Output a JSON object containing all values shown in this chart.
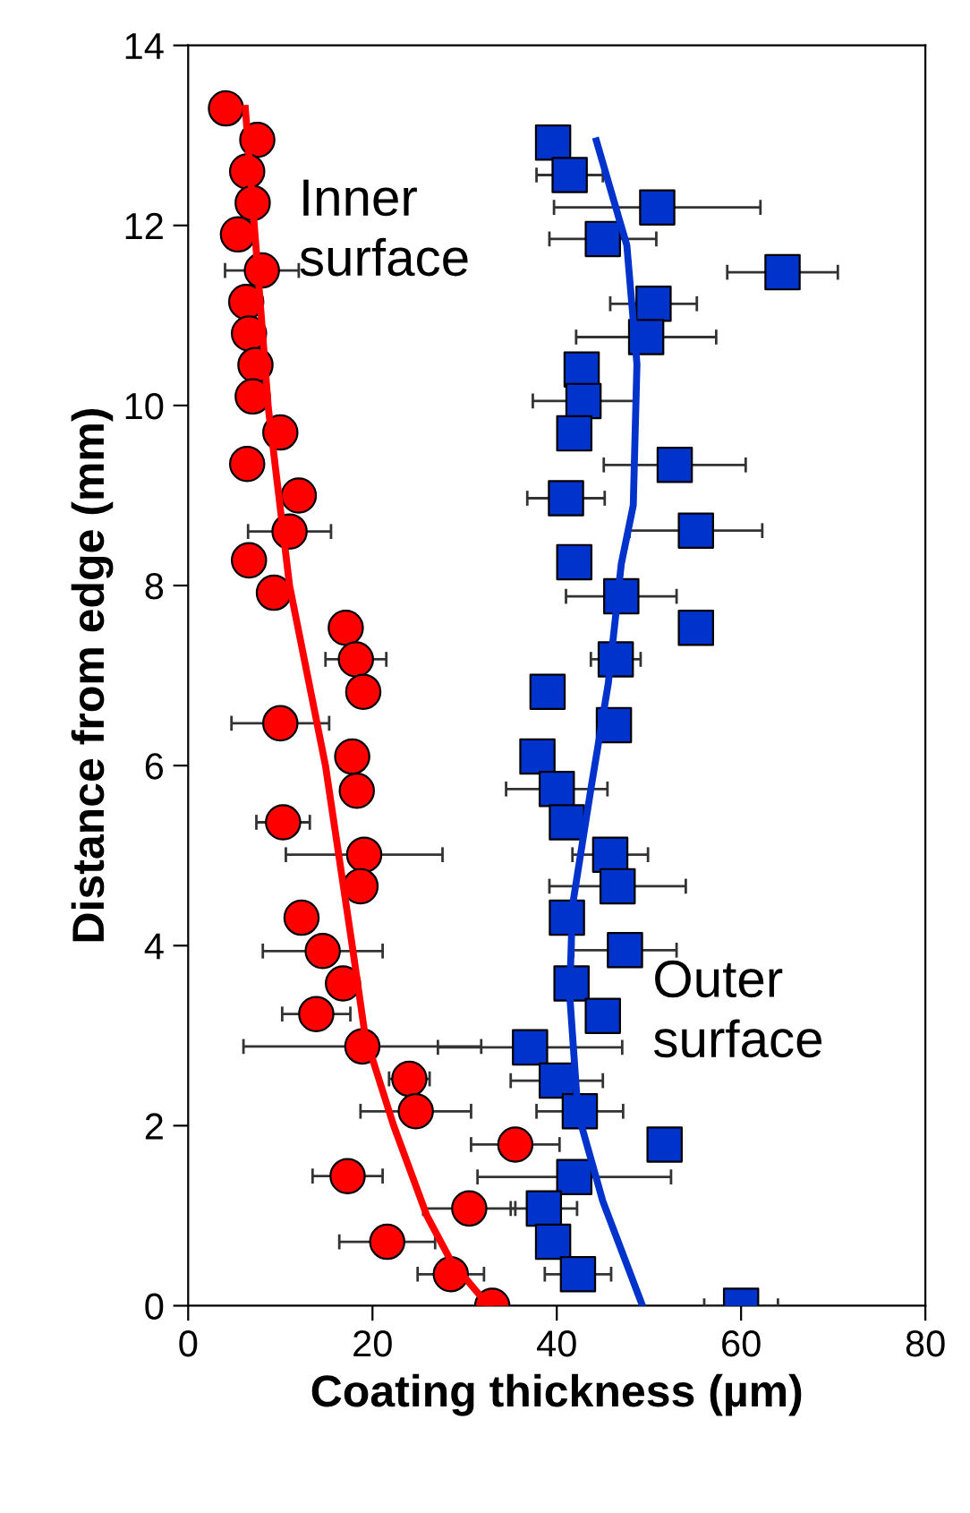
{
  "chart_data": {
    "type": "scatter",
    "xlabel": "Coating thickness (µm)",
    "ylabel": "Distance from edge (mm)",
    "xlim": [
      0,
      80
    ],
    "ylim": [
      0,
      14
    ],
    "xticks": [
      0,
      20,
      40,
      60,
      80
    ],
    "yticks": [
      0,
      2,
      4,
      6,
      8,
      10,
      12,
      14
    ],
    "grid": false,
    "legend": false,
    "series": [
      {
        "name": "Inner surface",
        "marker": "circle",
        "color": "#ff0000",
        "x": [
          4.1,
          7.5,
          6.4,
          7.0,
          5.4,
          8.0,
          6.3,
          6.6,
          7.3,
          7.0,
          10.0,
          6.4,
          12.0,
          11.0,
          6.6,
          9.3,
          17.1,
          18.2,
          19.0,
          10.0,
          17.8,
          18.3,
          10.3,
          19.1,
          18.7,
          12.3,
          14.6,
          16.8,
          13.9,
          18.9,
          24.0,
          24.7,
          35.5,
          17.3,
          30.5,
          21.6,
          28.5,
          33.0
        ],
        "values": [
          13.3,
          12.95,
          12.6,
          12.25,
          11.9,
          11.5,
          11.15,
          10.8,
          10.45,
          10.1,
          9.7,
          9.35,
          9.0,
          8.6,
          8.28,
          7.92,
          7.53,
          7.18,
          6.82,
          6.47,
          6.1,
          5.72,
          5.37,
          5.01,
          4.66,
          4.31,
          3.94,
          3.58,
          3.24,
          2.88,
          2.52,
          2.16,
          1.79,
          1.44,
          1.08,
          0.71,
          0.35,
          0.0
        ],
        "xerrors": [
          null,
          1.5,
          null,
          null,
          null,
          4,
          null,
          null,
          null,
          null,
          null,
          null,
          null,
          4.5,
          null,
          null,
          null,
          3.3,
          null,
          5.3,
          null,
          null,
          2.9,
          8.5,
          null,
          null,
          6.5,
          null,
          3.7,
          12.9,
          2.2,
          6,
          4.8,
          3.8,
          5,
          5.2,
          3.6,
          null
        ]
      },
      {
        "name": "Outer surface",
        "marker": "square",
        "color": "#0033cc",
        "x": [
          39.6,
          41.4,
          50.9,
          45.0,
          64.5,
          50.5,
          49.7,
          42.7,
          42.9,
          41.9,
          52.8,
          41.0,
          55.1,
          41.9,
          47.0,
          55.1,
          46.4,
          39.0,
          46.2,
          37.9,
          40.0,
          41.1,
          45.8,
          46.6,
          41.1,
          47.4,
          41.6,
          45.0,
          37.1,
          40.0,
          42.5,
          51.7,
          41.9,
          38.6,
          39.6,
          42.3,
          60.0
        ],
        "values": [
          12.92,
          12.56,
          12.2,
          11.85,
          11.48,
          11.13,
          10.76,
          10.4,
          10.05,
          9.69,
          9.34,
          8.97,
          8.61,
          8.26,
          7.88,
          7.53,
          7.18,
          6.82,
          6.45,
          6.1,
          5.74,
          5.37,
          5.01,
          4.66,
          4.31,
          3.95,
          3.58,
          3.22,
          2.87,
          2.5,
          2.16,
          1.79,
          1.43,
          1.08,
          0.71,
          0.35,
          0.0
        ],
        "xerrors": [
          null,
          3.6,
          11.2,
          5.8,
          6,
          4.7,
          7.6,
          null,
          5.5,
          null,
          7.7,
          4.2,
          7.2,
          null,
          6,
          null,
          2.7,
          null,
          null,
          null,
          5.5,
          null,
          4.1,
          7.4,
          null,
          5.6,
          null,
          null,
          10,
          5,
          4.7,
          null,
          10.5,
          3.6,
          null,
          3.6,
          4
        ]
      },
      {
        "type": "line",
        "color": "#ff0000",
        "x": [
          6.2,
          8.7,
          11.0,
          14.9,
          17.8,
          19.2,
          22.3,
          25.9,
          28.5,
          32.6
        ],
        "values": [
          13.3,
          9.97,
          8.0,
          6.0,
          4.0,
          3.0,
          2.0,
          1.0,
          0.5,
          0.0
        ]
      },
      {
        "type": "line",
        "color": "#0033cc",
        "x": [
          44.3,
          47.6,
          48.7,
          48.3,
          47.0,
          45.6,
          43.7,
          41.7,
          41.4,
          42.3,
          45.0,
          49.3
        ],
        "values": [
          12.94,
          11.78,
          10.46,
          8.89,
          8.24,
          6.92,
          5.74,
          4.44,
          3.46,
          2.14,
          1.16,
          0.0
        ]
      }
    ]
  }
}
